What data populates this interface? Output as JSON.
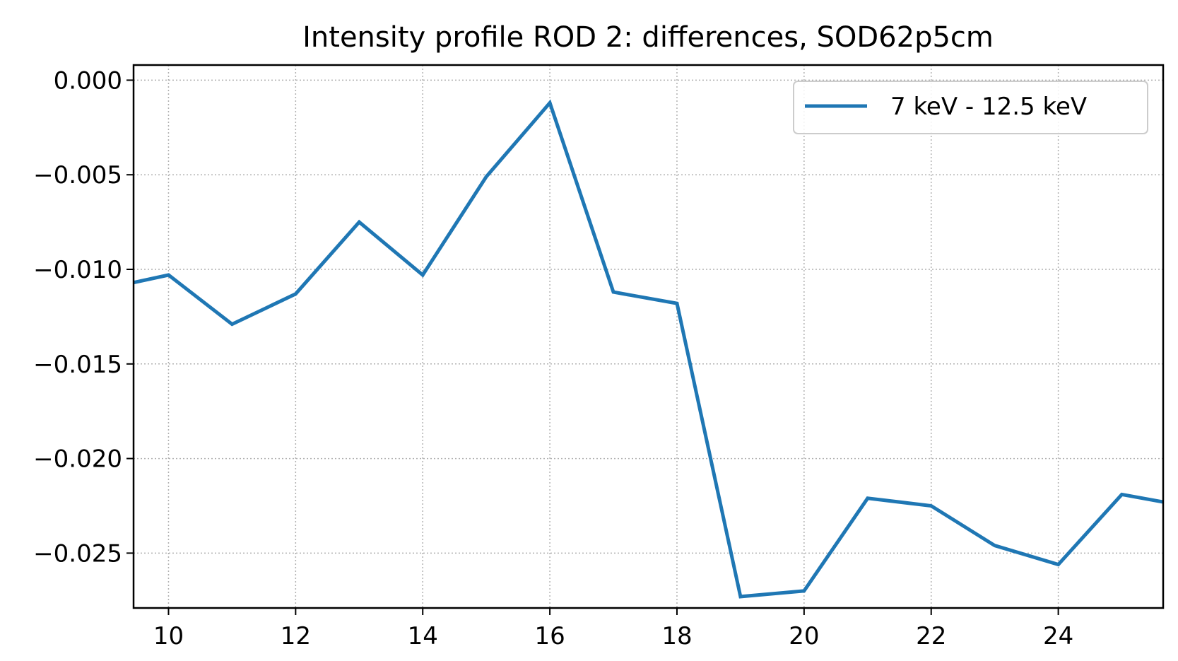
{
  "chart_data": {
    "type": "line",
    "title": "Intensity profile ROD 2: differences, SOD62p5cm",
    "xlabel": "",
    "ylabel": "",
    "xlim": [
      9.45,
      25.65
    ],
    "ylim": [
      -0.0279,
      0.0008
    ],
    "xticks": [
      10,
      12,
      14,
      16,
      18,
      20,
      22,
      24
    ],
    "xtick_labels": [
      "10",
      "12",
      "14",
      "16",
      "18",
      "20",
      "22",
      "24"
    ],
    "yticks": [
      0.0,
      -0.005,
      -0.01,
      -0.015,
      -0.02,
      -0.025
    ],
    "ytick_labels": [
      "0.000",
      "−0.005",
      "−0.010",
      "−0.015",
      "−0.020",
      "−0.025"
    ],
    "grid": true,
    "legend_position": "upper right",
    "series": [
      {
        "name": "7 keV - 12.5 keV",
        "color": "#1f77b4",
        "x": [
          9.45,
          10,
          11,
          12,
          13,
          14,
          15,
          16,
          17,
          18,
          19,
          20,
          21,
          22,
          23,
          24,
          25,
          25.65
        ],
        "y": [
          -0.0107,
          -0.0103,
          -0.0129,
          -0.0113,
          -0.0075,
          -0.0103,
          -0.0051,
          -0.0012,
          -0.0112,
          -0.0118,
          -0.0273,
          -0.027,
          -0.0221,
          -0.0225,
          -0.0246,
          -0.0256,
          -0.0219,
          -0.0223
        ]
      }
    ]
  }
}
